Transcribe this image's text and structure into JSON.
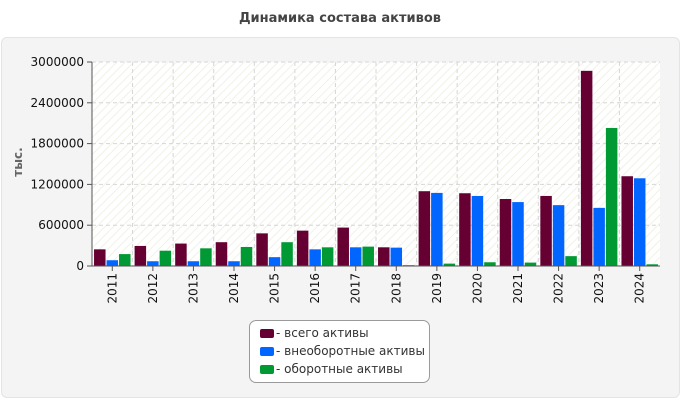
{
  "chart_data": {
    "type": "bar",
    "title": "Динамика состава активов",
    "ylabel": "тыс.",
    "xlabel": "",
    "ylim": [
      0,
      3000000
    ],
    "yticks": [
      0,
      600000,
      1200000,
      1800000,
      2400000,
      3000000
    ],
    "categories": [
      "2011",
      "2012",
      "2013",
      "2014",
      "2015",
      "2016",
      "2017",
      "2018",
      "2019",
      "2020",
      "2021",
      "2022",
      "2023",
      "2024"
    ],
    "series": [
      {
        "name": "- всего активы",
        "color": "#660033",
        "values": [
          245000,
          295000,
          330000,
          350000,
          480000,
          520000,
          565000,
          275000,
          1100000,
          1070000,
          985000,
          1030000,
          2870000,
          1320000
        ]
      },
      {
        "name": "- внеоборотные активы",
        "color": "#0066ff",
        "values": [
          85000,
          70000,
          70000,
          70000,
          130000,
          245000,
          275000,
          270000,
          1075000,
          1030000,
          940000,
          895000,
          855000,
          1290000
        ]
      },
      {
        "name": "- оборотные активы",
        "color": "#009933",
        "values": [
          175000,
          225000,
          260000,
          280000,
          350000,
          275000,
          285000,
          12000,
          35000,
          55000,
          50000,
          145000,
          2030000,
          25000
        ]
      }
    ],
    "grid": true,
    "legend": "bottom-center"
  }
}
